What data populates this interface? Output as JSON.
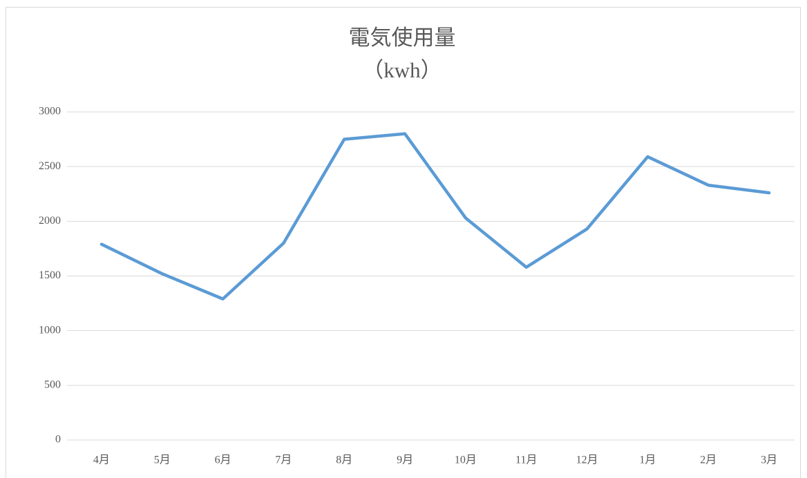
{
  "chart_data": {
    "type": "line",
    "title": "電気使用量",
    "subtitle": "（kwh）",
    "categories": [
      "4月",
      "5月",
      "6月",
      "7月",
      "8月",
      "9月",
      "10月",
      "11月",
      "12月",
      "1月",
      "2月",
      "3月"
    ],
    "series": [
      {
        "color": "#5b9bd5",
        "values": [
          1790,
          1520,
          1290,
          1800,
          2750,
          2800,
          2030,
          1580,
          1930,
          2590,
          2330,
          2260
        ]
      }
    ],
    "ylim": [
      0,
      3000
    ],
    "yticks": [
      0,
      500,
      1000,
      1500,
      2000,
      2500,
      3000
    ],
    "grid": true
  }
}
